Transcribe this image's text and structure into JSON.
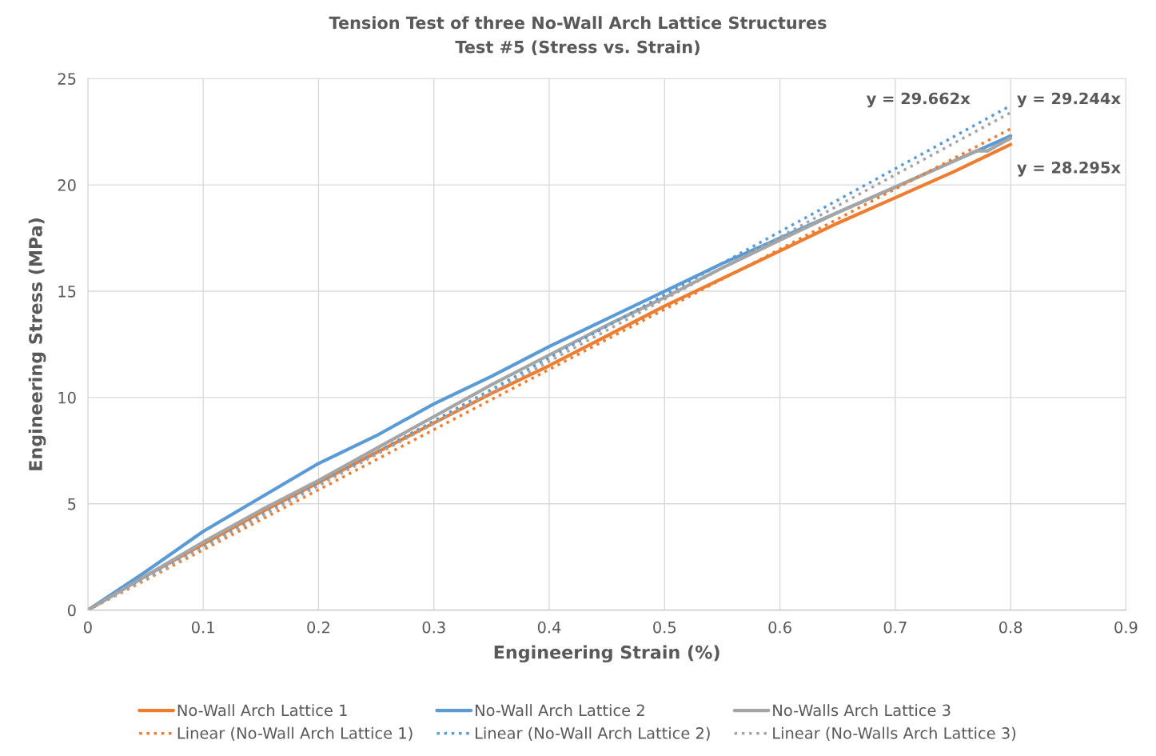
{
  "chart_data": {
    "type": "line",
    "title": "Tension Test of three No-Wall Arch Lattice Structures",
    "subtitle": "Test #5 (Stress vs. Strain)",
    "xlabel": "Engineering Strain (%)",
    "ylabel": "Engineering Stress (MPa)",
    "xlim": [
      0,
      0.9
    ],
    "xticks": [
      0,
      0.1,
      0.2,
      0.3,
      0.4,
      0.5,
      0.6,
      0.7,
      0.8,
      0.9
    ],
    "ylim": [
      0,
      25
    ],
    "yticks": [
      0,
      5,
      10,
      15,
      20,
      25
    ],
    "grid": true,
    "legend": "bottom",
    "marker": "none",
    "series": [
      {
        "name": "No-Wall Arch Lattice 1",
        "color": "#ed7d31",
        "line_style": "solid",
        "x": [
          0,
          0.05,
          0.1,
          0.15,
          0.2,
          0.25,
          0.3,
          0.35,
          0.4,
          0.45,
          0.5,
          0.55,
          0.6,
          0.65,
          0.7,
          0.75,
          0.8
        ],
        "values": [
          0,
          1.6,
          3.1,
          4.6,
          6.0,
          7.4,
          8.8,
          10.2,
          11.5,
          12.9,
          14.3,
          15.6,
          16.9,
          18.2,
          19.4,
          20.6,
          21.9
        ]
      },
      {
        "name": "No-Wall Arch Lattice 2",
        "color": "#5b9bd5",
        "line_style": "solid",
        "x": [
          0,
          0.05,
          0.1,
          0.15,
          0.2,
          0.25,
          0.3,
          0.35,
          0.4,
          0.45,
          0.5,
          0.55,
          0.6,
          0.65,
          0.7,
          0.75,
          0.8
        ],
        "values": [
          0,
          1.8,
          3.7,
          5.3,
          6.9,
          8.2,
          9.7,
          11.0,
          12.4,
          13.7,
          15.0,
          16.3,
          17.5,
          18.7,
          19.9,
          21.1,
          22.3
        ]
      },
      {
        "name": "No-Walls Arch Lattice 3",
        "color": "#a5a5a5",
        "line_style": "solid",
        "x": [
          0,
          0.05,
          0.1,
          0.15,
          0.2,
          0.25,
          0.3,
          0.35,
          0.4,
          0.45,
          0.5,
          0.55,
          0.6,
          0.65,
          0.7,
          0.75,
          0.77,
          0.78,
          0.8
        ],
        "values": [
          0,
          1.6,
          3.2,
          4.7,
          6.1,
          7.6,
          9.1,
          10.6,
          12.0,
          13.4,
          14.7,
          16.1,
          17.4,
          18.7,
          19.9,
          21.1,
          21.6,
          21.6,
          22.2
        ]
      },
      {
        "name": "Linear (No-Wall Arch Lattice 1)",
        "color": "#ed7d31",
        "line_style": "dotted",
        "x": [
          0,
          0.8
        ],
        "values": [
          0,
          22.64
        ]
      },
      {
        "name": "Linear (No-Wall Arch Lattice 2)",
        "color": "#5b9bd5",
        "line_style": "dotted",
        "x": [
          0,
          0.8
        ],
        "values": [
          0,
          23.73
        ]
      },
      {
        "name": "Linear (No-Walls Arch Lattice 3)",
        "color": "#a5a5a5",
        "line_style": "dotted",
        "x": [
          0,
          0.8
        ],
        "values": [
          0,
          23.4
        ]
      }
    ],
    "annotations": [
      "y = 29.662x",
      "y = 29.244x",
      "y = 28.295x"
    ]
  }
}
